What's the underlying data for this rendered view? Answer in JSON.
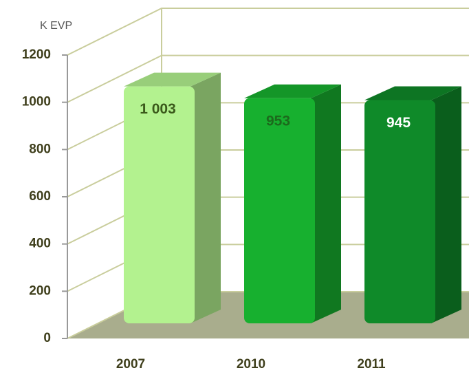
{
  "chart_data": {
    "type": "bar3d",
    "y_label": "K EVP",
    "categories": [
      "2007",
      "2010",
      "2011"
    ],
    "values": [
      1003,
      953,
      945
    ],
    "value_labels": [
      "1 003",
      "953",
      "945"
    ],
    "colors": [
      "#b3f28f",
      "#17b02f",
      "#0f8a29"
    ],
    "ylim": [
      0,
      1200
    ],
    "yticks": [
      0,
      200,
      400,
      600,
      800,
      1000,
      1200
    ],
    "grid": true
  }
}
